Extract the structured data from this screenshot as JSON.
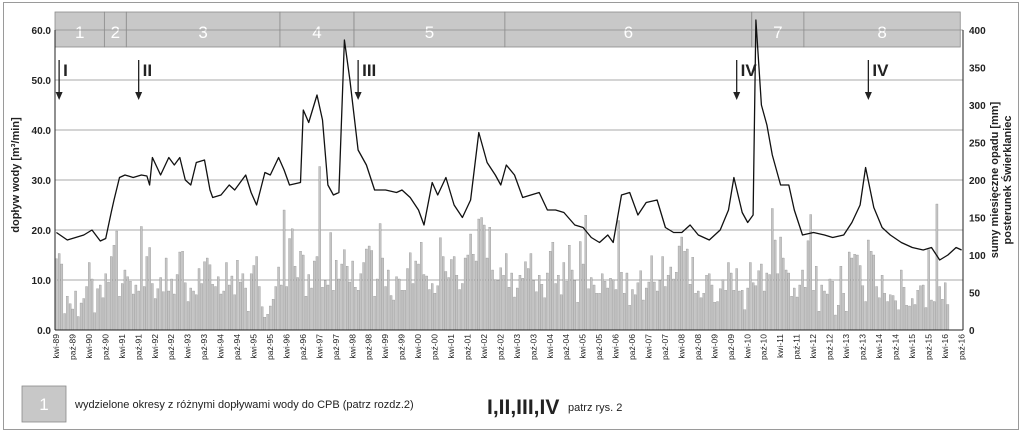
{
  "chart_data": {
    "type": "bar+line",
    "ylabel_left": "dopływ wody [m³/min]",
    "ylabel_right": "sumy miesięczne opadu [mm]\nposterunek Świerklaniec",
    "ylim_left": [
      0,
      60
    ],
    "ylim_right": [
      0,
      400
    ],
    "yticks_left": [
      "0.0",
      "10.0",
      "20.0",
      "30.0",
      "40.0",
      "50.0",
      "60.0"
    ],
    "yticks_right": [
      "0",
      "50",
      "100",
      "150",
      "200",
      "250",
      "300",
      "350",
      "400"
    ],
    "grid": "horizontal",
    "x_start": "1989-04",
    "x_end": "2016-10",
    "x_tick_labels": [
      "kwi-89",
      "paź-89",
      "kwi-90",
      "paź-90",
      "kwi-91",
      "paź-91",
      "kwi-92",
      "paź-92",
      "kwi-93",
      "paź-93",
      "kwi-94",
      "paź-94",
      "kwi-95",
      "paź-95",
      "kwi-96",
      "paź-96",
      "kwi-97",
      "paź-97",
      "kwi-98",
      "paź-98",
      "kwi-99",
      "paź-99",
      "kwi-00",
      "paź-00",
      "kwi-01",
      "paź-01",
      "kwi-02",
      "paź-02",
      "kwi-03",
      "paź-03",
      "kwi-04",
      "paź-04",
      "kwi-05",
      "paź-05",
      "kwi-06",
      "paź-06",
      "kwi-07",
      "paź-07",
      "kwi-08",
      "paź-08",
      "kwi-09",
      "paź-09",
      "kwi-10",
      "paź-10",
      "kwi-11",
      "paź-11",
      "kwi-12",
      "paź-12",
      "kwi-13",
      "paź-13",
      "kwi-14",
      "paź-14",
      "kwi-15",
      "paź-15",
      "kwi-16",
      "paź-16"
    ],
    "periods": [
      {
        "label": "1",
        "start": "1989-04",
        "end": "1990-10"
      },
      {
        "label": "2",
        "start": "1990-10",
        "end": "1991-06"
      },
      {
        "label": "3",
        "start": "1991-06",
        "end": "1996-02"
      },
      {
        "label": "4",
        "start": "1996-02",
        "end": "1998-05"
      },
      {
        "label": "5",
        "start": "1998-05",
        "end": "2002-12"
      },
      {
        "label": "6",
        "start": "2002-12",
        "end": "2010-06"
      },
      {
        "label": "7",
        "start": "2010-06",
        "end": "2012-01"
      },
      {
        "label": "8",
        "start": "2012-01",
        "end": "2016-10"
      }
    ],
    "markers": [
      {
        "label": "I",
        "date": "1989-05"
      },
      {
        "label": "II",
        "date": "1991-10"
      },
      {
        "label": "III",
        "date": "1998-06"
      },
      {
        "label": "IV",
        "date": "2009-12"
      },
      {
        "label": "IV",
        "date": "2013-12"
      }
    ],
    "series": [
      {
        "series_type": "line",
        "axis": "left",
        "anchors": [
          [
            "1989-04",
            19.5
          ],
          [
            "1989-08",
            18.0
          ],
          [
            "1989-11",
            18.5
          ],
          [
            "1990-02",
            19.0
          ],
          [
            "1990-05",
            20.0
          ],
          [
            "1990-08",
            17.8
          ],
          [
            "1990-10",
            18.3
          ],
          [
            "1990-12",
            23.5
          ],
          [
            "1991-01",
            26.0
          ],
          [
            "1991-03",
            30.5
          ],
          [
            "1991-05",
            31.0
          ],
          [
            "1991-08",
            30.5
          ],
          [
            "1991-11",
            31.0
          ],
          [
            "1992-01",
            30.8
          ],
          [
            "1992-02",
            29.0
          ],
          [
            "1992-03",
            34.5
          ],
          [
            "1992-06",
            31.0
          ],
          [
            "1992-09",
            34.5
          ],
          [
            "1992-11",
            33.0
          ],
          [
            "1993-01",
            34.5
          ],
          [
            "1993-03",
            30.0
          ],
          [
            "1993-05",
            29.0
          ],
          [
            "1993-07",
            33.5
          ],
          [
            "1993-10",
            34.0
          ],
          [
            "1993-12",
            28.0
          ],
          [
            "1994-01",
            26.5
          ],
          [
            "1994-04",
            27.0
          ],
          [
            "1994-07",
            29.0
          ],
          [
            "1994-09",
            28.0
          ],
          [
            "1995-01",
            31.0
          ],
          [
            "1995-03",
            27.5
          ],
          [
            "1995-05",
            25.0
          ],
          [
            "1995-08",
            31.5
          ],
          [
            "1995-10",
            31.0
          ],
          [
            "1996-01",
            34.5
          ],
          [
            "1996-03",
            32.0
          ],
          [
            "1996-05",
            29.0
          ],
          [
            "1996-09",
            29.5
          ],
          [
            "1996-10",
            44.0
          ],
          [
            "1996-12",
            41.5
          ],
          [
            "1997-03",
            47.0
          ],
          [
            "1997-05",
            42.0
          ],
          [
            "1997-07",
            29.0
          ],
          [
            "1997-09",
            27.0
          ],
          [
            "1997-11",
            27.5
          ],
          [
            "1998-01",
            58.0
          ],
          [
            "1998-03",
            50.0
          ],
          [
            "1998-06",
            36.0
          ],
          [
            "1998-09",
            33.0
          ],
          [
            "1998-12",
            28.0
          ],
          [
            "1999-04",
            28.0
          ],
          [
            "1999-08",
            27.5
          ],
          [
            "1999-10",
            28.0
          ],
          [
            "2000-01",
            26.5
          ],
          [
            "2000-04",
            24.0
          ],
          [
            "2000-06",
            21.0
          ],
          [
            "2000-09",
            29.5
          ],
          [
            "2000-11",
            27.0
          ],
          [
            "2001-02",
            30.5
          ],
          [
            "2001-05",
            25.0
          ],
          [
            "2001-08",
            22.5
          ],
          [
            "2001-11",
            26.0
          ],
          [
            "2002-02",
            39.5
          ],
          [
            "2002-05",
            33.5
          ],
          [
            "2002-08",
            31.0
          ],
          [
            "2002-10",
            29.0
          ],
          [
            "2002-12",
            33.0
          ],
          [
            "2003-03",
            31.0
          ],
          [
            "2003-06",
            26.5
          ],
          [
            "2003-09",
            27.0
          ],
          [
            "2003-12",
            27.5
          ],
          [
            "2004-03",
            24.0
          ],
          [
            "2004-06",
            24.0
          ],
          [
            "2004-09",
            23.5
          ],
          [
            "2005-01",
            21.0
          ],
          [
            "2005-04",
            20.5
          ],
          [
            "2005-07",
            18.5
          ],
          [
            "2005-10",
            17.5
          ],
          [
            "2006-01",
            19.0
          ],
          [
            "2006-03",
            17.5
          ],
          [
            "2006-06",
            27.0
          ],
          [
            "2006-09",
            27.5
          ],
          [
            "2006-12",
            23.0
          ],
          [
            "2007-03",
            25.5
          ],
          [
            "2007-07",
            26.0
          ],
          [
            "2007-10",
            20.5
          ],
          [
            "2008-01",
            19.5
          ],
          [
            "2008-04",
            19.5
          ],
          [
            "2008-07",
            21.0
          ],
          [
            "2008-10",
            19.0
          ],
          [
            "2009-02",
            18.0
          ],
          [
            "2009-06",
            20.0
          ],
          [
            "2009-09",
            24.0
          ],
          [
            "2009-11",
            30.5
          ],
          [
            "2010-02",
            23.5
          ],
          [
            "2010-04",
            21.5
          ],
          [
            "2010-06",
            23.0
          ],
          [
            "2010-07",
            62.0
          ],
          [
            "2010-09",
            45.0
          ],
          [
            "2010-11",
            41.0
          ],
          [
            "2011-01",
            35.0
          ],
          [
            "2011-04",
            29.0
          ],
          [
            "2011-07",
            29.0
          ],
          [
            "2011-09",
            24.0
          ],
          [
            "2011-12",
            19.0
          ],
          [
            "2012-04",
            19.5
          ],
          [
            "2012-08",
            19.0
          ],
          [
            "2012-11",
            18.5
          ],
          [
            "2013-03",
            19.0
          ],
          [
            "2013-06",
            21.5
          ],
          [
            "2013-09",
            25.0
          ],
          [
            "2013-11",
            32.5
          ],
          [
            "2014-02",
            24.5
          ],
          [
            "2014-05",
            20.5
          ],
          [
            "2014-08",
            19.0
          ],
          [
            "2014-12",
            17.5
          ],
          [
            "2015-04",
            16.5
          ],
          [
            "2015-08",
            16.0
          ],
          [
            "2015-11",
            16.5
          ],
          [
            "2016-02",
            14.0
          ],
          [
            "2016-05",
            15.0
          ],
          [
            "2016-08",
            16.5
          ],
          [
            "2016-10",
            16.0
          ]
        ]
      },
      {
        "series_type": "bar",
        "axis": "right",
        "note": "monthly values, Apr 1989 – Oct 2016",
        "values": [
          95,
          102,
          88,
          22,
          45,
          35,
          28,
          52,
          18,
          36,
          42,
          58,
          90,
          68,
          23,
          55,
          60,
          43,
          75,
          64,
          98,
          113,
          132,
          45,
          62,
          80,
          71,
          65,
          48,
          60,
          52,
          138,
          58,
          98,
          110,
          62,
          42,
          55,
          70,
          51,
          96,
          52,
          68,
          48,
          74,
          104,
          105,
          63,
          38,
          56,
          52,
          47,
          82,
          62,
          91,
          96,
          87,
          61,
          58,
          71,
          48,
          52,
          90,
          60,
          72,
          47,
          93,
          64,
          75,
          56,
          25,
          75,
          86,
          98,
          58,
          31,
          17,
          21,
          32,
          41,
          58,
          84,
          60,
          160,
          58,
          122,
          135,
          85,
          70,
          105,
          100,
          45,
          74,
          56,
          92,
          98,
          218,
          57,
          66,
          60,
          130,
          53,
          93,
          68,
          88,
          107,
          85,
          64,
          92,
          57,
          53,
          75,
          90,
          108,
          112,
          106,
          45,
          68,
          142,
          96,
          58,
          80,
          46,
          40,
          71,
          68,
          53,
          53,
          82,
          103,
          62,
          92,
          88,
          117,
          74,
          72,
          54,
          62,
          49,
          59,
          123,
          98,
          78,
          70,
          94,
          98,
          73,
          54,
          62,
          96,
          100,
          128,
          101,
          92,
          148,
          150,
          140,
          96,
          137,
          80,
          67,
          66,
          83,
          73,
          102,
          57,
          76,
          44,
          56,
          73,
          69,
          91,
          82,
          102,
          66,
          51,
          73,
          61,
          43,
          76,
          105,
          117,
          62,
          73,
          47,
          90,
          65,
          113,
          80,
          66,
          37,
          118,
          88,
          153,
          55,
          70,
          60,
          49,
          49,
          75,
          65,
          56,
          69,
          67,
          54,
          146,
          77,
          49,
          76,
          33,
          54,
          47,
          63,
          79,
          40,
          56,
          64,
          99,
          64,
          52,
          66,
          98,
          58,
          73,
          84,
          68,
          77,
          112,
          124,
          105,
          108,
          61,
          97,
          49,
          52,
          43,
          49,
          73,
          75,
          60,
          37,
          38,
          55,
          67,
          53,
          90,
          76,
          53,
          82,
          52,
          53,
          27,
          56,
          90,
          63,
          59,
          79,
          88,
          52,
          76,
          74,
          162,
          120,
          75,
          124,
          96,
          80,
          76,
          45,
          56,
          44,
          60,
          80,
          57,
          119,
          154,
          53,
          85,
          25,
          60,
          52,
          48,
          68,
          65,
          20,
          33,
          85,
          49,
          25,
          104,
          96,
          101,
          100,
          86,
          59,
          38,
          120,
          105,
          100,
          58,
          43,
          73,
          49,
          38,
          47,
          46,
          39,
          27,
          80,
          57,
          33,
          32,
          42,
          34,
          53,
          59,
          60,
          30,
          107,
          40,
          38,
          168,
          58,
          41,
          63,
          34
        ]
      }
    ],
    "legend": {
      "swatch_label": "1",
      "swatch_text": "wydzielone okresy z różnymi dopływami wody do CPB (patrz rozdz.2)",
      "roman_label": "I,II,III,IV",
      "roman_text": "patrz rys. 2"
    }
  }
}
